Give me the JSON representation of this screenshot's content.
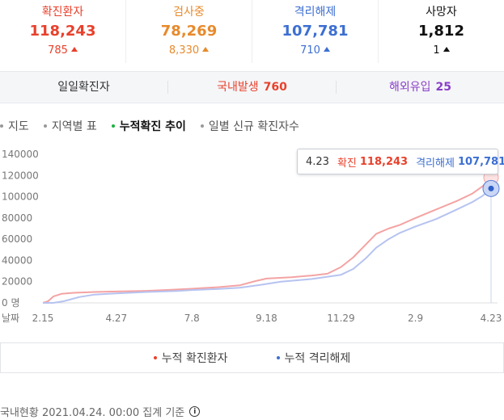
{
  "stats": [
    {
      "label": "확진환자",
      "value": "118,243",
      "delta": "785",
      "color": "#e8412c"
    },
    {
      "label": "검사중",
      "value": "78,269",
      "delta": "8,330",
      "color": "#e88a2c"
    },
    {
      "label": "격리해제",
      "value": "107,781",
      "delta": "710",
      "color": "#3d6fd1"
    },
    {
      "label": "사망자",
      "value": "1,812",
      "delta": "1",
      "color": "#111111"
    }
  ],
  "daily": {
    "title": "일일확진자",
    "domestic_label": "국내발생",
    "domestic_value": "760",
    "overseas_label": "해외유입",
    "overseas_value": "25"
  },
  "tabs": [
    {
      "label": "지도",
      "active": false
    },
    {
      "label": "지역별 표",
      "active": false
    },
    {
      "label": "누적확진 추이",
      "active": true
    },
    {
      "label": "일별 신규 확진자수",
      "active": false
    }
  ],
  "tooltip": {
    "date": "4.23",
    "confirmed_label": "확진",
    "confirmed_value": "118,243",
    "released_label": "격리해제",
    "released_value": "107,781"
  },
  "legend": {
    "confirmed": "누적 확진환자",
    "released": "누적 격리해제"
  },
  "footer": {
    "text": "국내현황 2021.04.24. 00:00 집계 기준"
  },
  "chart_data": {
    "type": "line",
    "x_label": "날짜",
    "y_unit_label": "0 명",
    "y_ticks": [
      "20000",
      "40000",
      "60000",
      "80000",
      "100000",
      "120000",
      "140000"
    ],
    "ylim": [
      0,
      140000
    ],
    "x_ticks": [
      "2.15",
      "4.27",
      "7.8",
      "9.18",
      "11.29",
      "2.9",
      "4.23"
    ],
    "x_tick_positions": [
      0,
      71,
      144,
      216,
      288,
      360,
      433
    ],
    "series": [
      {
        "name": "누적 확진환자",
        "color": "#f4a3a3",
        "points": [
          [
            0,
            0
          ],
          [
            5,
            1500
          ],
          [
            10,
            6000
          ],
          [
            18,
            8500
          ],
          [
            30,
            9500
          ],
          [
            50,
            10300
          ],
          [
            71,
            10700
          ],
          [
            100,
            11300
          ],
          [
            120,
            12200
          ],
          [
            144,
            13300
          ],
          [
            170,
            14800
          ],
          [
            190,
            16500
          ],
          [
            205,
            20500
          ],
          [
            216,
            22900
          ],
          [
            240,
            24200
          ],
          [
            260,
            25800
          ],
          [
            275,
            27500
          ],
          [
            288,
            33800
          ],
          [
            300,
            43000
          ],
          [
            312,
            55000
          ],
          [
            322,
            65000
          ],
          [
            334,
            70000
          ],
          [
            345,
            73500
          ],
          [
            360,
            80000
          ],
          [
            380,
            88000
          ],
          [
            400,
            96000
          ],
          [
            415,
            103000
          ],
          [
            425,
            110000
          ],
          [
            433,
            118243
          ]
        ]
      },
      {
        "name": "누적 격리해제",
        "color": "#b6c3f0",
        "points": [
          [
            0,
            0
          ],
          [
            10,
            0
          ],
          [
            20,
            1500
          ],
          [
            35,
            5500
          ],
          [
            50,
            7800
          ],
          [
            71,
            9000
          ],
          [
            100,
            10300
          ],
          [
            130,
            11200
          ],
          [
            144,
            12100
          ],
          [
            170,
            13200
          ],
          [
            190,
            14200
          ],
          [
            210,
            17000
          ],
          [
            230,
            20000
          ],
          [
            260,
            22500
          ],
          [
            288,
            26500
          ],
          [
            300,
            32000
          ],
          [
            312,
            42000
          ],
          [
            322,
            52000
          ],
          [
            334,
            60000
          ],
          [
            345,
            66000
          ],
          [
            360,
            72000
          ],
          [
            380,
            79000
          ],
          [
            400,
            88000
          ],
          [
            415,
            95000
          ],
          [
            425,
            101000
          ],
          [
            433,
            107781
          ]
        ]
      }
    ]
  }
}
